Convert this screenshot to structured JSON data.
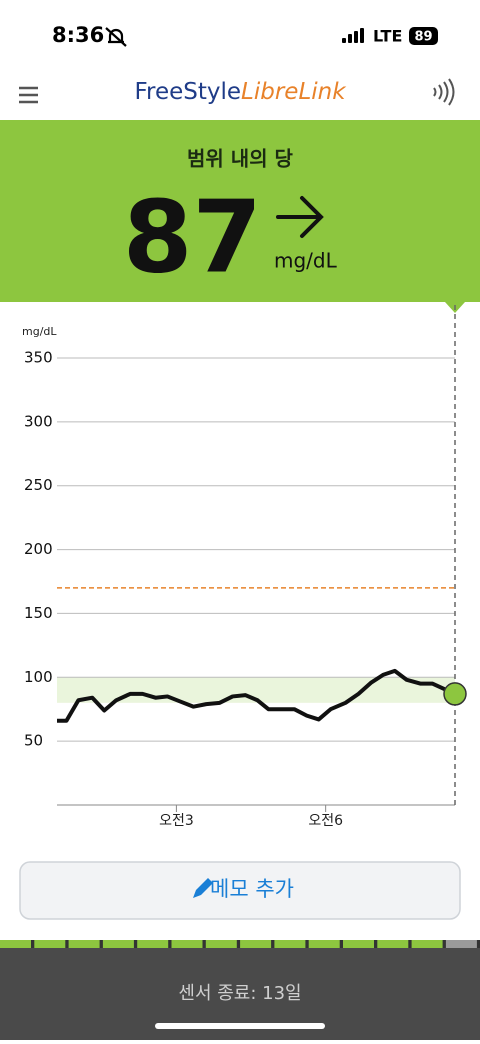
{
  "status": {
    "time": "8:36",
    "network": "LTE",
    "battery": "89"
  },
  "header": {
    "brand_part1": "FreeStyle",
    "brand_part2": "LibreLink"
  },
  "reading": {
    "label": "범위 내의 당",
    "value": 87,
    "unit": "mg/dL"
  },
  "chart_data": {
    "type": "line",
    "y_label": "mg/dL",
    "x": [
      0.6,
      0.79,
      1.03,
      1.31,
      1.55,
      1.79,
      2.07,
      2.32,
      2.58,
      2.82,
      3.08,
      3.34,
      3.6,
      3.87,
      4.13,
      4.39,
      4.63,
      4.85,
      5.11,
      5.37,
      5.62,
      5.86,
      6.1,
      6.4,
      6.66,
      6.92,
      7.16,
      7.39,
      7.63,
      7.91,
      8.15,
      8.6
    ],
    "values": [
      66,
      66,
      82,
      84,
      74,
      82,
      87,
      87,
      84,
      85,
      81,
      77,
      79,
      80,
      85,
      86,
      82,
      75,
      75,
      75,
      70,
      67,
      75,
      80,
      87,
      96,
      102,
      105,
      98,
      95,
      95,
      87
    ],
    "color": "#111111",
    "xlim": [
      0.6,
      8.6
    ],
    "xticks": [
      {
        "value": 3,
        "label": "오전3"
      },
      {
        "value": 6,
        "label": "오전6"
      }
    ],
    "ylim": [
      0,
      350
    ],
    "yticks": [
      50,
      100,
      150,
      200,
      250,
      300,
      350
    ],
    "grid": true,
    "high_line": 170,
    "high_line_color": "#e8822a",
    "target_range": [
      80,
      100
    ],
    "target_color": "#eaf5dc",
    "current_color": "#8dc63f"
  },
  "button": {
    "label": "메모 추가"
  },
  "footer": {
    "text": "센서 종료: 13일"
  }
}
